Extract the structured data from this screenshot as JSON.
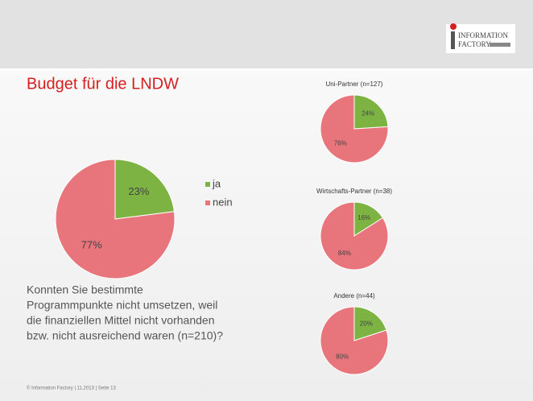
{
  "slide": {
    "title": "Budget für die LNDW",
    "question": [
      "Konnten Sie bestimmte",
      "Programmpunkte nicht umsetzen, weil",
      "die finanziellen Mittel nicht vorhanden",
      "bzw. nicht ausreichend waren (n=210)?"
    ],
    "footer": "© Information Factory | 11.2013 | Seite 13",
    "logo": [
      "INFORMATION",
      "FACTORY"
    ]
  },
  "chart_data": [
    {
      "type": "pie",
      "categories": [
        "ja",
        "nein"
      ],
      "values": [
        23,
        77
      ],
      "value_labels": [
        "23%",
        "77%"
      ],
      "colors": [
        "#7cb342",
        "#e8747c"
      ],
      "legend": "right"
    },
    {
      "type": "pie",
      "title": "Uni-Partner (n=127)",
      "values": [
        24,
        76
      ],
      "value_labels": [
        "24%",
        "76%"
      ],
      "colors": [
        "#7cb342",
        "#e8747c"
      ]
    },
    {
      "type": "pie",
      "title": "Wirtschafts-Partner (n=38)",
      "values": [
        16,
        84
      ],
      "value_labels": [
        "16%",
        "84%"
      ],
      "colors": [
        "#7cb342",
        "#e8747c"
      ]
    },
    {
      "type": "pie",
      "title": "Andere (n=44)",
      "values": [
        20,
        80
      ],
      "value_labels": [
        "20%",
        "80%"
      ],
      "colors": [
        "#7cb342",
        "#e8747c"
      ]
    }
  ]
}
